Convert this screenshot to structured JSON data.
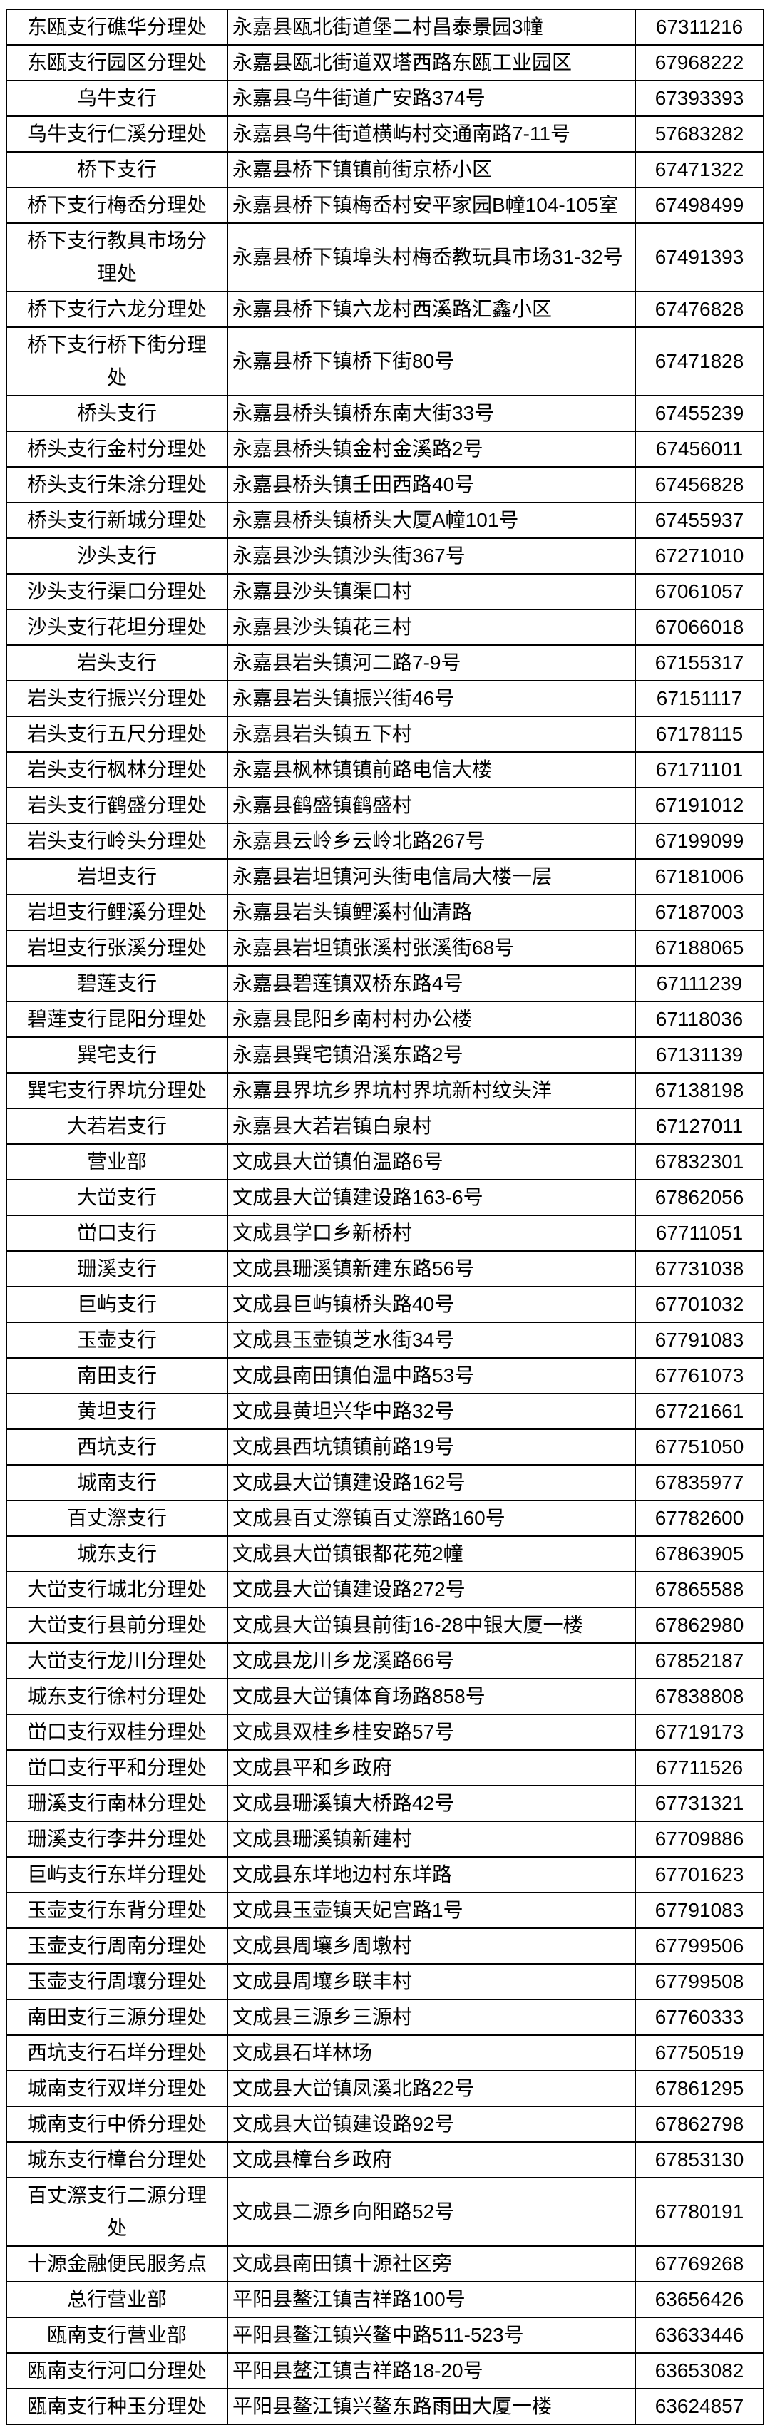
{
  "page": {
    "background_color": "#ffffff",
    "border_color": "#000000",
    "text_color": "#000000"
  },
  "table": {
    "rows": [
      {
        "name": "东瓯支行礁华分理处",
        "address": "永嘉县瓯北街道堡二村昌泰景园3幢",
        "phone": "67311216"
      },
      {
        "name": "东瓯支行园区分理处",
        "address": "永嘉县瓯北街道双塔西路东瓯工业园区",
        "phone": "67968222"
      },
      {
        "name": "乌牛支行",
        "address": "永嘉县乌牛街道广安路374号",
        "phone": "67393393"
      },
      {
        "name": "乌牛支行仁溪分理处",
        "address": "永嘉县乌牛街道横屿村交通南路7-11号",
        "phone": "57683282"
      },
      {
        "name": "桥下支行",
        "address": "永嘉县桥下镇镇前街京桥小区",
        "phone": "67471322"
      },
      {
        "name": "桥下支行梅岙分理处",
        "address": "永嘉县桥下镇梅岙村安平家园B幢104-105室",
        "phone": "67498499"
      },
      {
        "name": "桥下支行教具市场分理处",
        "address": "永嘉县桥下镇埠头村梅岙教玩具市场31-32号",
        "phone": "67491393"
      },
      {
        "name": "桥下支行六龙分理处",
        "address": "永嘉县桥下镇六龙村西溪路汇鑫小区",
        "phone": "67476828"
      },
      {
        "name": "桥下支行桥下街分理处",
        "address": "永嘉县桥下镇桥下街80号",
        "phone": "67471828"
      },
      {
        "name": "桥头支行",
        "address": "永嘉县桥头镇桥东南大街33号",
        "phone": "67455239"
      },
      {
        "name": "桥头支行金村分理处",
        "address": "永嘉县桥头镇金村金溪路2号",
        "phone": "67456011"
      },
      {
        "name": "桥头支行朱涂分理处",
        "address": "永嘉县桥头镇壬田西路40号",
        "phone": "67456828"
      },
      {
        "name": "桥头支行新城分理处",
        "address": "永嘉县桥头镇桥头大厦A幢101号",
        "phone": "67455937"
      },
      {
        "name": "沙头支行",
        "address": "永嘉县沙头镇沙头街367号",
        "phone": "67271010"
      },
      {
        "name": "沙头支行渠口分理处",
        "address": "永嘉县沙头镇渠口村",
        "phone": "67061057"
      },
      {
        "name": "沙头支行花坦分理处",
        "address": "永嘉县沙头镇花三村",
        "phone": "67066018"
      },
      {
        "name": "岩头支行",
        "address": "永嘉县岩头镇河二路7-9号",
        "phone": "67155317"
      },
      {
        "name": "岩头支行振兴分理处",
        "address": "永嘉县岩头镇振兴街46号",
        "phone": "67151117"
      },
      {
        "name": "岩头支行五尺分理处",
        "address": "永嘉县岩头镇五下村",
        "phone": "67178115"
      },
      {
        "name": "岩头支行枫林分理处",
        "address": "永嘉县枫林镇镇前路电信大楼",
        "phone": "67171101"
      },
      {
        "name": "岩头支行鹤盛分理处",
        "address": "永嘉县鹤盛镇鹤盛村",
        "phone": "67191012"
      },
      {
        "name": "岩头支行岭头分理处",
        "address": "永嘉县云岭乡云岭北路267号",
        "phone": "67199099"
      },
      {
        "name": "岩坦支行",
        "address": "永嘉县岩坦镇河头街电信局大楼一层",
        "phone": "67181006"
      },
      {
        "name": "岩坦支行鲤溪分理处",
        "address": "永嘉县岩头镇鲤溪村仙清路",
        "phone": "67187003"
      },
      {
        "name": "岩坦支行张溪分理处",
        "address": "永嘉县岩坦镇张溪村张溪街68号",
        "phone": "67188065"
      },
      {
        "name": "碧莲支行",
        "address": "永嘉县碧莲镇双桥东路4号",
        "phone": "67111239"
      },
      {
        "name": "碧莲支行昆阳分理处",
        "address": "永嘉县昆阳乡南村村办公楼",
        "phone": "67118036"
      },
      {
        "name": "巽宅支行",
        "address": "永嘉县巽宅镇沿溪东路2号",
        "phone": "67131139"
      },
      {
        "name": "巽宅支行界坑分理处",
        "address": "永嘉县界坑乡界坑村界坑新村纹头洋",
        "phone": "67138198"
      },
      {
        "name": "大若岩支行",
        "address": "永嘉县大若岩镇白泉村",
        "phone": "67127011"
      },
      {
        "name": "营业部",
        "address": "文成县大峃镇伯温路6号",
        "phone": "67832301"
      },
      {
        "name": "大峃支行",
        "address": "文成县大峃镇建设路163-6号",
        "phone": "67862056"
      },
      {
        "name": "峃口支行",
        "address": "文成县学口乡新桥村",
        "phone": "67711051"
      },
      {
        "name": "珊溪支行",
        "address": "文成县珊溪镇新建东路56号",
        "phone": "67731038"
      },
      {
        "name": "巨屿支行",
        "address": "文成县巨屿镇桥头路40号",
        "phone": "67701032"
      },
      {
        "name": "玉壶支行",
        "address": "文成县玉壶镇芝水街34号",
        "phone": "67791083"
      },
      {
        "name": "南田支行",
        "address": "文成县南田镇伯温中路53号",
        "phone": "67761073"
      },
      {
        "name": "黄坦支行",
        "address": "文成县黄坦兴华中路32号",
        "phone": "67721661"
      },
      {
        "name": "西坑支行",
        "address": "文成县西坑镇镇前路19号",
        "phone": "67751050"
      },
      {
        "name": "城南支行",
        "address": "文成县大峃镇建设路162号",
        "phone": "67835977"
      },
      {
        "name": "百丈漈支行",
        "address": "文成县百丈漈镇百丈漈路160号",
        "phone": "67782600"
      },
      {
        "name": "城东支行",
        "address": "文成县大峃镇银都花苑2幢",
        "phone": "67863905"
      },
      {
        "name": "大峃支行城北分理处",
        "address": "文成县大峃镇建设路272号",
        "phone": "67865588"
      },
      {
        "name": "大峃支行县前分理处",
        "address": "文成县大峃镇县前街16-28中银大厦一楼",
        "phone": "67862980"
      },
      {
        "name": "大峃支行龙川分理处",
        "address": "文成县龙川乡龙溪路66号",
        "phone": "67852187"
      },
      {
        "name": "城东支行徐村分理处",
        "address": "文成县大峃镇体育场路858号",
        "phone": "67838808"
      },
      {
        "name": "峃口支行双桂分理处",
        "address": "文成县双桂乡桂安路57号",
        "phone": "67719173"
      },
      {
        "name": "峃口支行平和分理处",
        "address": "文成县平和乡政府",
        "phone": "67711526"
      },
      {
        "name": "珊溪支行南林分理处",
        "address": "文成县珊溪镇大桥路42号",
        "phone": "67731321"
      },
      {
        "name": "珊溪支行李井分理处",
        "address": "文成县珊溪镇新建村",
        "phone": "67709886"
      },
      {
        "name": "巨屿支行东垟分理处",
        "address": "文成县东垟地边村东垟路",
        "phone": "67701623"
      },
      {
        "name": "玉壶支行东背分理处",
        "address": "文成县玉壶镇天妃宫路1号",
        "phone": "67791083"
      },
      {
        "name": "玉壶支行周南分理处",
        "address": "文成县周壤乡周墩村",
        "phone": "67799506"
      },
      {
        "name": "玉壶支行周壤分理处",
        "address": "文成县周壤乡联丰村",
        "phone": "67799508"
      },
      {
        "name": "南田支行三源分理处",
        "address": "文成县三源乡三源村",
        "phone": "67760333"
      },
      {
        "name": "西坑支行石垟分理处",
        "address": "文成县石垟林场",
        "phone": "67750519"
      },
      {
        "name": "城南支行双垟分理处",
        "address": "文成县大峃镇凤溪北路22号",
        "phone": "67861295"
      },
      {
        "name": "城南支行中侨分理处",
        "address": "文成县大峃镇建设路92号",
        "phone": "67862798"
      },
      {
        "name": "城东支行樟台分理处",
        "address": "文成县樟台乡政府",
        "phone": "67853130"
      },
      {
        "name": "百丈漈支行二源分理处",
        "address": "文成县二源乡向阳路52号",
        "phone": "67780191"
      },
      {
        "name": "十源金融便民服务点",
        "address": "文成县南田镇十源社区旁",
        "phone": "67769268"
      },
      {
        "name": "总行营业部",
        "address": "平阳县鳌江镇吉祥路100号",
        "phone": "63656426"
      },
      {
        "name": "瓯南支行营业部",
        "address": "平阳县鳌江镇兴鳌中路511-523号",
        "phone": "63633446"
      },
      {
        "name": "瓯南支行河口分理处",
        "address": "平阳县鳌江镇吉祥路18-20号",
        "phone": "63653082"
      },
      {
        "name": "瓯南支行种玉分理处",
        "address": "平阳县鳌江镇兴鳌东路雨田大厦一楼",
        "phone": "63624857"
      }
    ]
  }
}
